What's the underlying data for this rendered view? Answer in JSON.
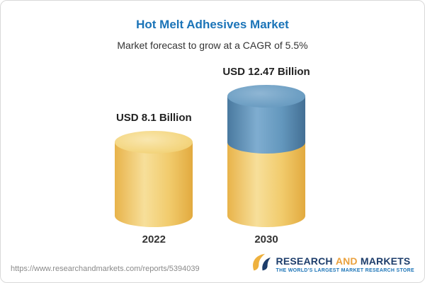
{
  "header": {
    "title": "Hot Melt Adhesives Market",
    "subtitle": "Market forecast to grow at a CAGR of 5.5%"
  },
  "chart_data": {
    "type": "bar",
    "title": "Hot Melt Adhesives Market",
    "subtitle": "Market forecast to grow at a CAGR of 5.5%",
    "unit": "USD Billion",
    "categories": [
      "2022",
      "2030"
    ],
    "values": [
      8.1,
      12.47
    ],
    "value_labels": [
      "USD 8.1 Billion",
      "USD 12.47 Billion"
    ],
    "cagr_percent": 5.5,
    "legend": "none",
    "layout": "3d cylinder bars, 2030 bar shows 2022-equivalent base in gold with growth portion in blue on top",
    "colors": {
      "gold": "#f0c75e",
      "blue": "#5b8fb5",
      "title_blue": "#1b74b8"
    }
  },
  "footer": {
    "url": "https://www.researchandmarkets.com/reports/5394039",
    "logo": {
      "word1": "RESEARCH",
      "word2": "AND",
      "word3": "MARKETS",
      "tagline": "THE WORLD'S LARGEST MARKET RESEARCH STORE"
    }
  }
}
